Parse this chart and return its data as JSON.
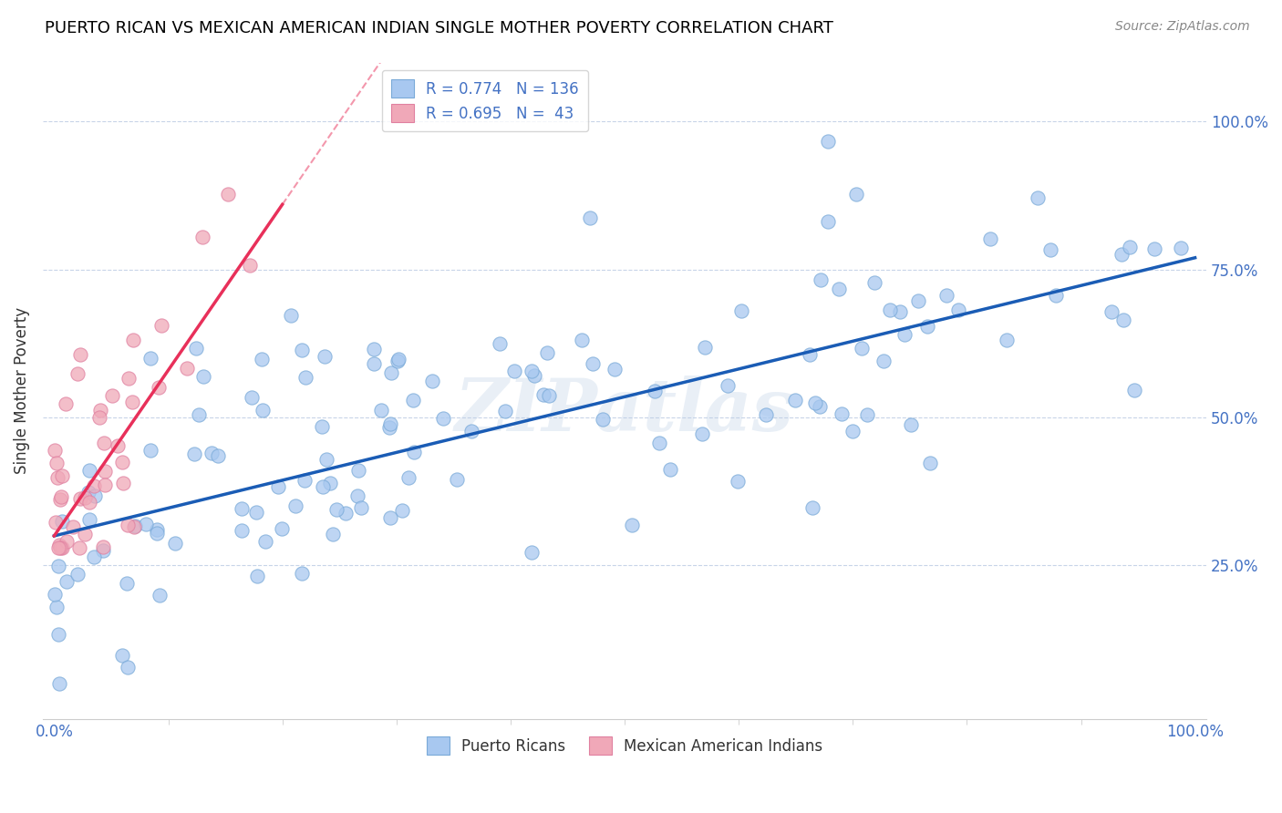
{
  "title": "PUERTO RICAN VS MEXICAN AMERICAN INDIAN SINGLE MOTHER POVERTY CORRELATION CHART",
  "source": "Source: ZipAtlas.com",
  "ylabel": "Single Mother Poverty",
  "watermark": "ZIPatlas",
  "legend_blue_label": "Puerto Ricans",
  "legend_pink_label": "Mexican American Indians",
  "blue_scatter_color": "#a8c8f0",
  "pink_scatter_color": "#f0a8b8",
  "blue_scatter_edge": "#7aaad8",
  "pink_scatter_edge": "#e080a0",
  "blue_line_color": "#1a5cb5",
  "pink_line_color": "#e8305a",
  "axis_color": "#4472c4",
  "grid_color": "#c8d4e8",
  "background_color": "#ffffff",
  "title_fontsize": 13,
  "source_fontsize": 10,
  "legend_fontsize": 12,
  "n_blue": 136,
  "n_pink": 43,
  "r_blue": 0.774,
  "r_pink": 0.695,
  "ytick_positions": [
    0.25,
    0.5,
    0.75,
    1.0
  ],
  "ytick_labels": [
    "25.0%",
    "50.0%",
    "75.0%",
    "100.0%"
  ],
  "xtick_positions": [
    0.0,
    1.0
  ],
  "xtick_labels": [
    "0.0%",
    "100.0%"
  ]
}
